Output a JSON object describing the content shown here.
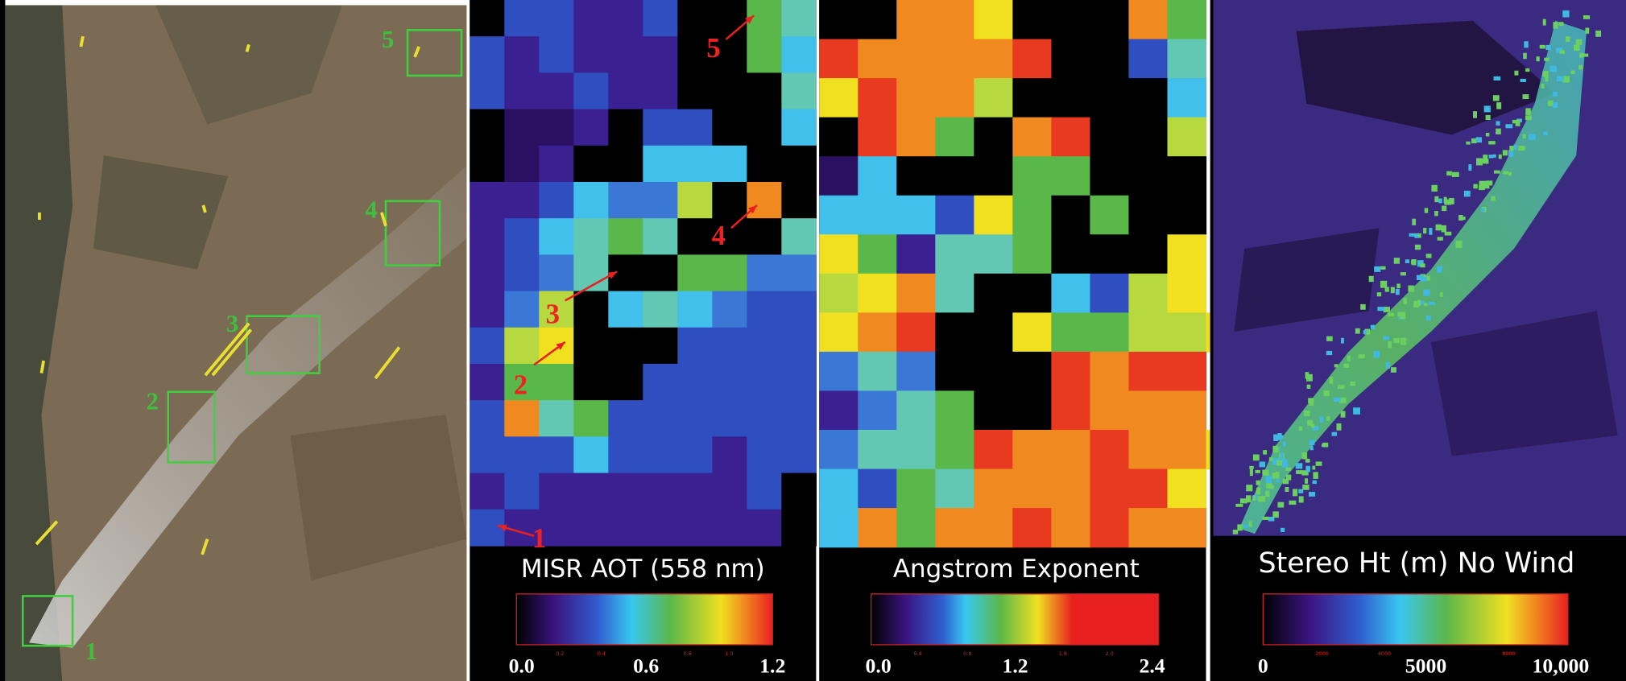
{
  "panels": [
    {
      "labels": [
        "1",
        "2",
        "3",
        "4",
        "5"
      ]
    },
    {
      "labels": [
        "1",
        "2",
        "3",
        "4",
        "5"
      ],
      "colorbar": {
        "title": "MISR AOT (558 nm)",
        "ticks": [
          "0.0",
          "0.6",
          "1.2"
        ],
        "minor_ticks": [
          "0.2",
          "0.4",
          "0.8",
          "1.0"
        ]
      }
    },
    {
      "colorbar": {
        "title": "Angstrom Exponent",
        "ticks": [
          "0.0",
          "1.2",
          "2.4"
        ],
        "minor_ticks": [
          "0.4",
          "0.8",
          "1.6",
          "2.0"
        ]
      }
    },
    {
      "colorbar": {
        "title": "Stereo Ht (m) No Wind",
        "ticks": [
          "0",
          "5000",
          "10,000"
        ],
        "minor_ticks": [
          "2000",
          "4000",
          "8000"
        ]
      }
    }
  ]
}
